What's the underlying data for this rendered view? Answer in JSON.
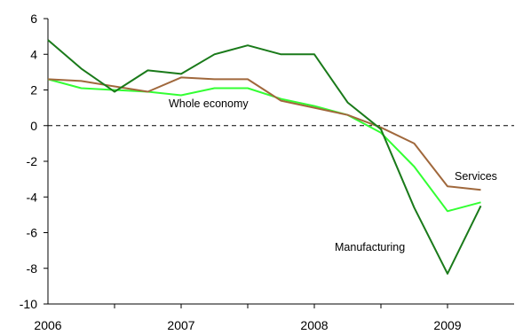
{
  "chart_data": {
    "type": "line",
    "title": "",
    "xlabel": "",
    "ylabel": "",
    "ylim": [
      -10,
      6
    ],
    "yticks": [
      6,
      4,
      2,
      0,
      -2,
      -4,
      -6,
      -8,
      -10
    ],
    "xlim": [
      2006.0,
      2009.5
    ],
    "xticks": [
      "2006",
      "2007",
      "2008",
      "2009"
    ],
    "x": [
      2006.0,
      2006.25,
      2006.5,
      2006.75,
      2007.0,
      2007.25,
      2007.5,
      2007.75,
      2008.0,
      2008.25,
      2008.5,
      2008.75,
      2009.0,
      2009.25
    ],
    "zero_line": "dashed",
    "grid": false,
    "series": [
      {
        "name": "Whole economy",
        "color": "#33ff33",
        "values": [
          2.6,
          2.1,
          2.0,
          1.9,
          1.7,
          2.1,
          2.1,
          1.5,
          1.1,
          0.6,
          -0.4,
          -2.3,
          -4.8,
          -4.3
        ]
      },
      {
        "name": "Services",
        "color": "#a0683c",
        "values": [
          2.6,
          2.5,
          2.2,
          1.9,
          2.7,
          2.6,
          2.6,
          1.4,
          1.0,
          0.6,
          -0.1,
          -1.0,
          -3.4,
          -3.6
        ]
      },
      {
        "name": "Manufacturing",
        "color": "#1a7a1a",
        "values": [
          4.8,
          3.2,
          1.9,
          3.1,
          2.9,
          4.0,
          4.5,
          4.0,
          4.0,
          1.3,
          -0.2,
          -4.6,
          -8.3,
          -4.5
        ]
      }
    ]
  }
}
